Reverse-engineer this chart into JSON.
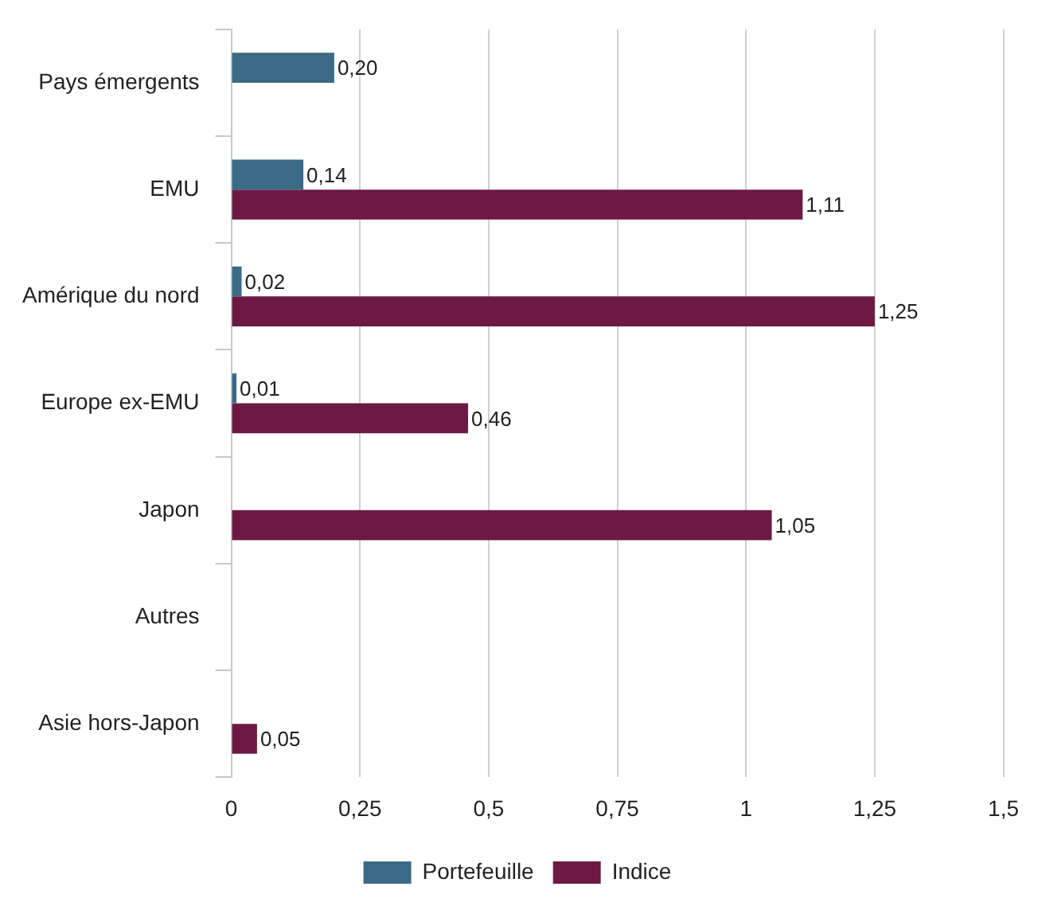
{
  "chart_data": {
    "type": "bar",
    "orientation": "horizontal",
    "categories": [
      "Pays émergents",
      "EMU",
      "Amérique du nord",
      "Europe ex-EMU",
      "Japon",
      "Autres",
      "Asie hors-Japon"
    ],
    "series": [
      {
        "name": "Portefeuille",
        "color": "#3a6a85",
        "values": [
          0.2,
          0.14,
          0.02,
          0.01,
          null,
          null,
          null
        ],
        "value_labels": [
          "0,20",
          "0,14",
          "0,02",
          "0,01",
          null,
          null,
          null
        ]
      },
      {
        "name": "Indice",
        "color": "#6c1a43",
        "values": [
          null,
          1.11,
          1.25,
          0.46,
          1.05,
          null,
          0.05
        ],
        "value_labels": [
          null,
          "1,11",
          "1,25",
          "0,46",
          "1,05",
          null,
          "0,05"
        ]
      }
    ],
    "xlim": [
      0,
      1.5
    ],
    "xticks": [
      0,
      {
        "value": 0.25,
        "label": "0,25"
      },
      {
        "value": 0.5,
        "label": "0,5"
      },
      {
        "value": 0.75,
        "label": "0,75"
      },
      1,
      {
        "value": 1.25,
        "label": "1,25"
      },
      {
        "value": 1.5,
        "label": "1,5"
      }
    ],
    "grid": "x",
    "legend": "bottom"
  }
}
